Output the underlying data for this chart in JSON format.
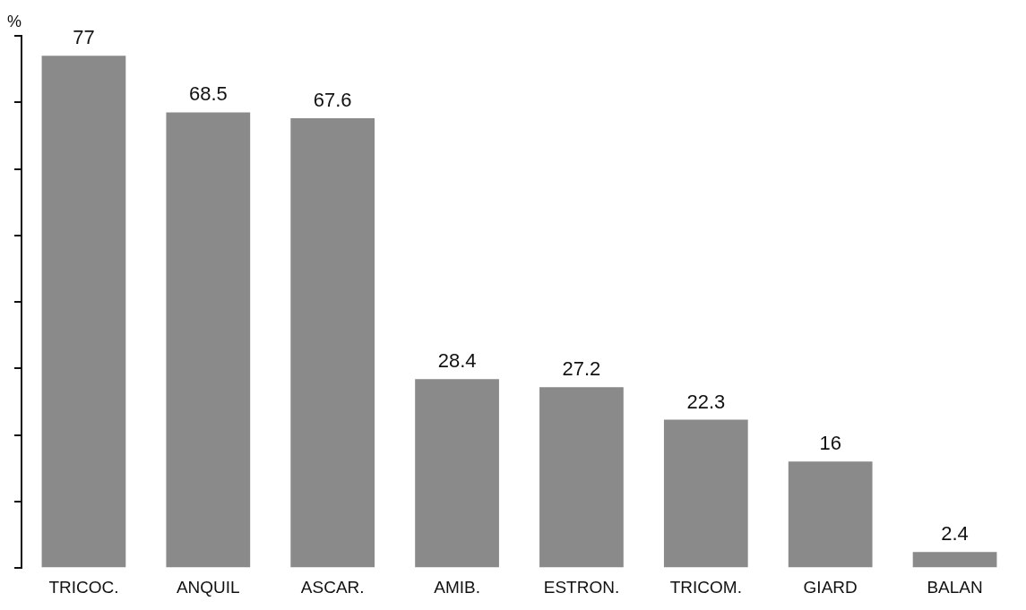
{
  "chart_data": {
    "type": "bar",
    "ylabel": "%",
    "categories": [
      "TRICOC.",
      "ANQUIL",
      "ASCAR.",
      "AMIB.",
      "ESTRON.",
      "TRICOM.",
      "GIARD",
      "BALAN"
    ],
    "values": [
      77,
      68.5,
      67.6,
      28.4,
      27.2,
      22.3,
      16,
      2.4
    ],
    "color": "#8a8a8a",
    "tick_labels": "x",
    "grid": false,
    "legend": false,
    "data_labels": true
  }
}
